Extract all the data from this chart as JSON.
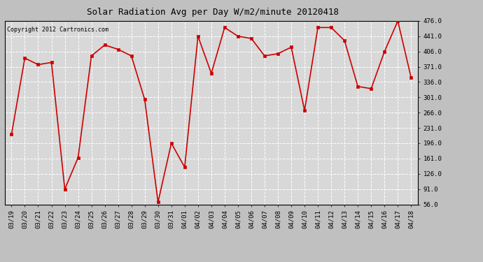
{
  "title": "Solar Radiation Avg per Day W/m2/minute 20120418",
  "copyright_text": "Copyright 2012 Cartronics.com",
  "dates": [
    "03/19",
    "03/20",
    "03/21",
    "03/22",
    "03/23",
    "03/24",
    "03/25",
    "03/26",
    "03/27",
    "03/28",
    "03/29",
    "03/30",
    "03/31",
    "04/01",
    "04/02",
    "04/03",
    "04/04",
    "04/05",
    "04/06",
    "04/07",
    "04/08",
    "04/09",
    "04/10",
    "04/11",
    "04/12",
    "04/13",
    "04/14",
    "04/15",
    "04/16",
    "04/17",
    "04/18"
  ],
  "values": [
    216,
    391,
    376,
    381,
    91,
    163,
    396,
    421,
    411,
    396,
    296,
    61,
    196,
    141,
    441,
    356,
    461,
    441,
    436,
    396,
    401,
    416,
    271,
    461,
    461,
    431,
    326,
    321,
    406,
    476,
    346
  ],
  "yticks": [
    56.0,
    91.0,
    126.0,
    161.0,
    196.0,
    231.0,
    266.0,
    301.0,
    336.0,
    371.0,
    406.0,
    441.0,
    476.0
  ],
  "ymin": 56.0,
  "ymax": 476.0,
  "line_color": "#cc0000",
  "marker_color": "#cc0000",
  "plot_bg_color": "#d8d8d8",
  "fig_bg_color": "#c0c0c0",
  "grid_color": "#ffffff",
  "title_fontsize": 9,
  "copyright_fontsize": 6,
  "tick_fontsize": 6.5,
  "dpi": 100
}
